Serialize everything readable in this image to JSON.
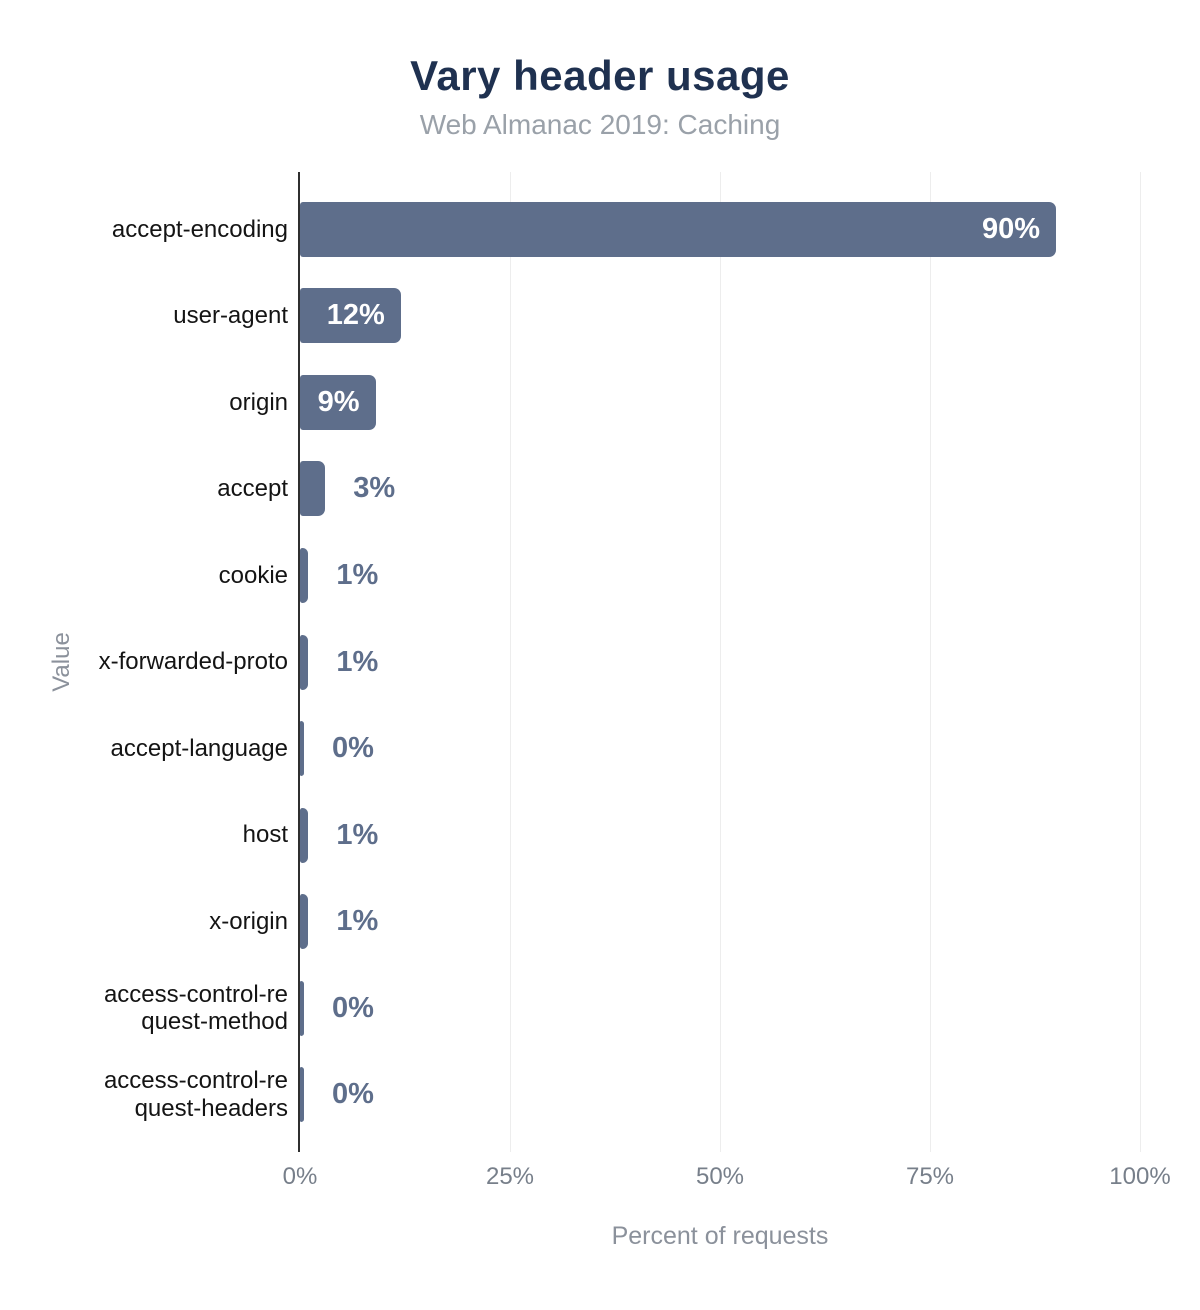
{
  "title": "Vary header usage",
  "subtitle": "Web Almanac 2019: Caching",
  "colors": {
    "title_text": "#1f3150",
    "subtitle_text": "#9aa1a9",
    "bar_fill": "#5e6e8b",
    "bar_label_inside": "#ffffff",
    "bar_label_outside": "#5e6e8b",
    "category_text": "#141414",
    "tick_text": "#777f8a",
    "axis_title_text": "#8b919b",
    "axis_line": "#2f2f2f",
    "gridline": "#ededed",
    "background": "#ffffff"
  },
  "chart_data": {
    "type": "bar",
    "orientation": "horizontal",
    "title": "Vary header usage",
    "subtitle": "Web Almanac 2019: Caching",
    "xlabel": "Percent of requests",
    "ylabel": "Value",
    "xlim": [
      0,
      100
    ],
    "xticks": [
      0,
      25,
      50,
      75,
      100
    ],
    "xtick_labels": [
      "0%",
      "25%",
      "50%",
      "75%",
      "100%"
    ],
    "grid": "vertical-only",
    "legend": "none",
    "categories": [
      "accept-encoding",
      "user-agent",
      "origin",
      "accept",
      "cookie",
      "x-forwarded-proto",
      "accept-language",
      "host",
      "x-origin",
      "access-control-request-method",
      "access-control-request-headers"
    ],
    "display_labels": [
      "accept-encoding",
      "user-agent",
      "origin",
      "accept",
      "cookie",
      "x-forwarded-proto",
      "accept-language",
      "host",
      "x-origin",
      "access-control-re\nquest-method",
      "access-control-re\nquest-headers"
    ],
    "values": [
      90,
      12,
      9,
      3,
      1,
      1,
      0,
      1,
      1,
      0,
      0
    ],
    "value_labels": [
      "90%",
      "12%",
      "9%",
      "3%",
      "1%",
      "1%",
      "0%",
      "1%",
      "1%",
      "0%",
      "0%"
    ]
  }
}
